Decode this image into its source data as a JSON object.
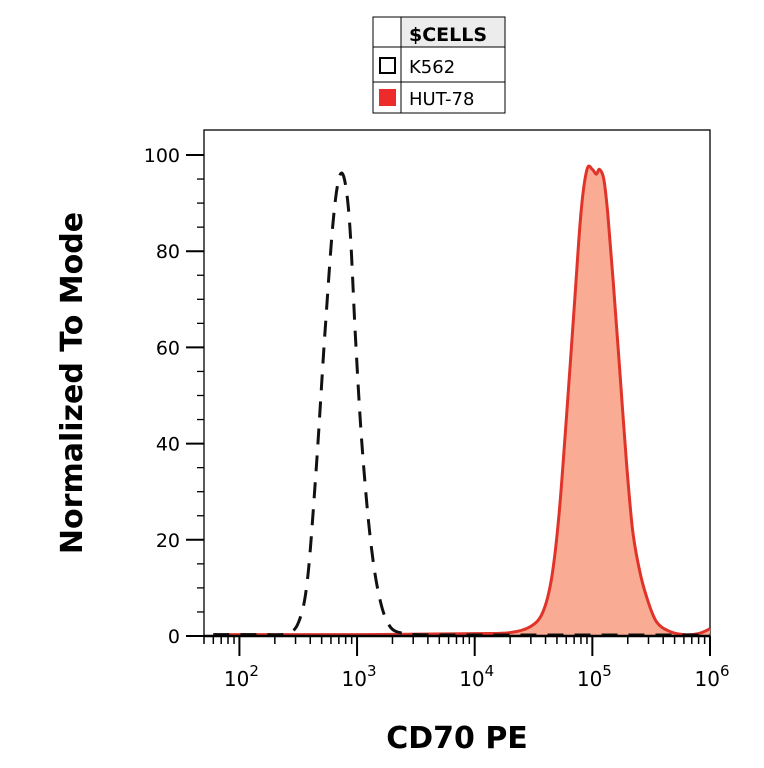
{
  "legend": {
    "header": "$CELLS",
    "entries": [
      {
        "label": "K562",
        "swatch": "outline"
      },
      {
        "label": "HUT-78",
        "swatch": "filled"
      }
    ]
  },
  "colors": {
    "hut_fill": "#f9ab93",
    "hut_line": "#e0342a",
    "hut_swatch": "#ee2b2b",
    "k562_line": "#111111",
    "axis": "#000000"
  },
  "chart_data": {
    "type": "area",
    "xlabel": "CD70 PE",
    "ylabel": "Normalized To Mode",
    "x_scale": "log",
    "xlim": [
      50,
      1000000
    ],
    "ylim": [
      0,
      100
    ],
    "x_ticks": [
      {
        "value": 100,
        "base": "10",
        "exp": "2"
      },
      {
        "value": 1000,
        "base": "10",
        "exp": "3"
      },
      {
        "value": 10000,
        "base": "10",
        "exp": "4"
      },
      {
        "value": 100000,
        "base": "10",
        "exp": "5"
      },
      {
        "value": 1000000,
        "base": "10",
        "exp": "6"
      }
    ],
    "y_ticks": [
      0,
      20,
      40,
      60,
      80,
      100
    ],
    "grid": false,
    "legend_position": "top-center",
    "series": [
      {
        "name": "K562",
        "style": "dashed-outline",
        "x": [
          60,
          150,
          250,
          320,
          380,
          450,
          530,
          620,
          700,
          780,
          870,
          970,
          1100,
          1300,
          1550,
          1900,
          2500,
          3300,
          5000,
          10000,
          30000,
          100000,
          300000,
          1000000
        ],
        "y": [
          0.3,
          0.3,
          0.5,
          3,
          12,
          35,
          62,
          85,
          95,
          95,
          85,
          62,
          40,
          20,
          8,
          2,
          0.5,
          0.3,
          0.2,
          0.2,
          0.2,
          0.2,
          0.2,
          0.2
        ]
      },
      {
        "name": "HUT-78",
        "style": "filled",
        "x": [
          60,
          1000,
          10000,
          20000,
          30000,
          38000,
          45000,
          52000,
          60000,
          70000,
          80000,
          90000,
          100000,
          108000,
          115000,
          125000,
          135000,
          150000,
          170000,
          195000,
          220000,
          250000,
          290000,
          350000,
          450000,
          600000,
          800000,
          1000000
        ],
        "y": [
          0.3,
          0.3,
          0.5,
          0.7,
          2,
          5,
          12,
          25,
          45,
          68,
          88,
          97,
          97,
          96,
          97,
          95,
          88,
          74,
          56,
          36,
          22,
          14,
          8,
          3,
          1,
          0.3,
          0.5,
          1.5
        ]
      }
    ]
  }
}
